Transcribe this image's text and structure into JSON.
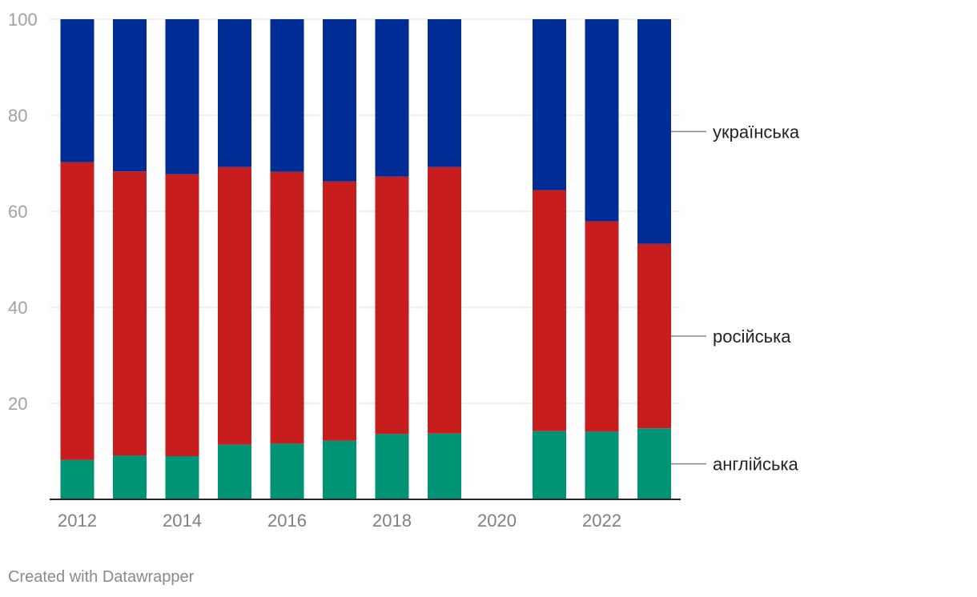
{
  "chart_data": {
    "type": "bar",
    "stacked": true,
    "percent_stacked": true,
    "categories": [
      "2012",
      "2013",
      "2014",
      "2015",
      "2016",
      "2017",
      "2018",
      "2019",
      "2020",
      "2021",
      "2022",
      "2023"
    ],
    "series": [
      {
        "name": "англійська",
        "color": "#009477",
        "values": [
          8.2,
          9.1,
          9.0,
          11.4,
          11.6,
          12.2,
          13.6,
          13.7,
          null,
          14.2,
          14.1,
          14.8
        ]
      },
      {
        "name": "російська",
        "color": "#c71e1d",
        "values": [
          62.0,
          59.2,
          58.7,
          57.8,
          56.6,
          54.0,
          53.6,
          55.5,
          null,
          50.2,
          43.8,
          38.4
        ]
      },
      {
        "name": "українська",
        "color": "#002c95",
        "values": [
          29.8,
          31.7,
          32.3,
          30.8,
          31.8,
          33.8,
          32.8,
          30.8,
          null,
          35.6,
          42.1,
          46.8
        ]
      }
    ],
    "ylim": [
      0,
      100
    ],
    "yticks": [
      20,
      40,
      60,
      80,
      100
    ],
    "xticks": [
      "2012",
      "2014",
      "2016",
      "2018",
      "2020",
      "2022"
    ],
    "grid": true,
    "legend": "direct labels, right of last bar",
    "title": "",
    "xlabel": "",
    "ylabel": ""
  },
  "footer": {
    "credit": "Created with Datawrapper"
  }
}
